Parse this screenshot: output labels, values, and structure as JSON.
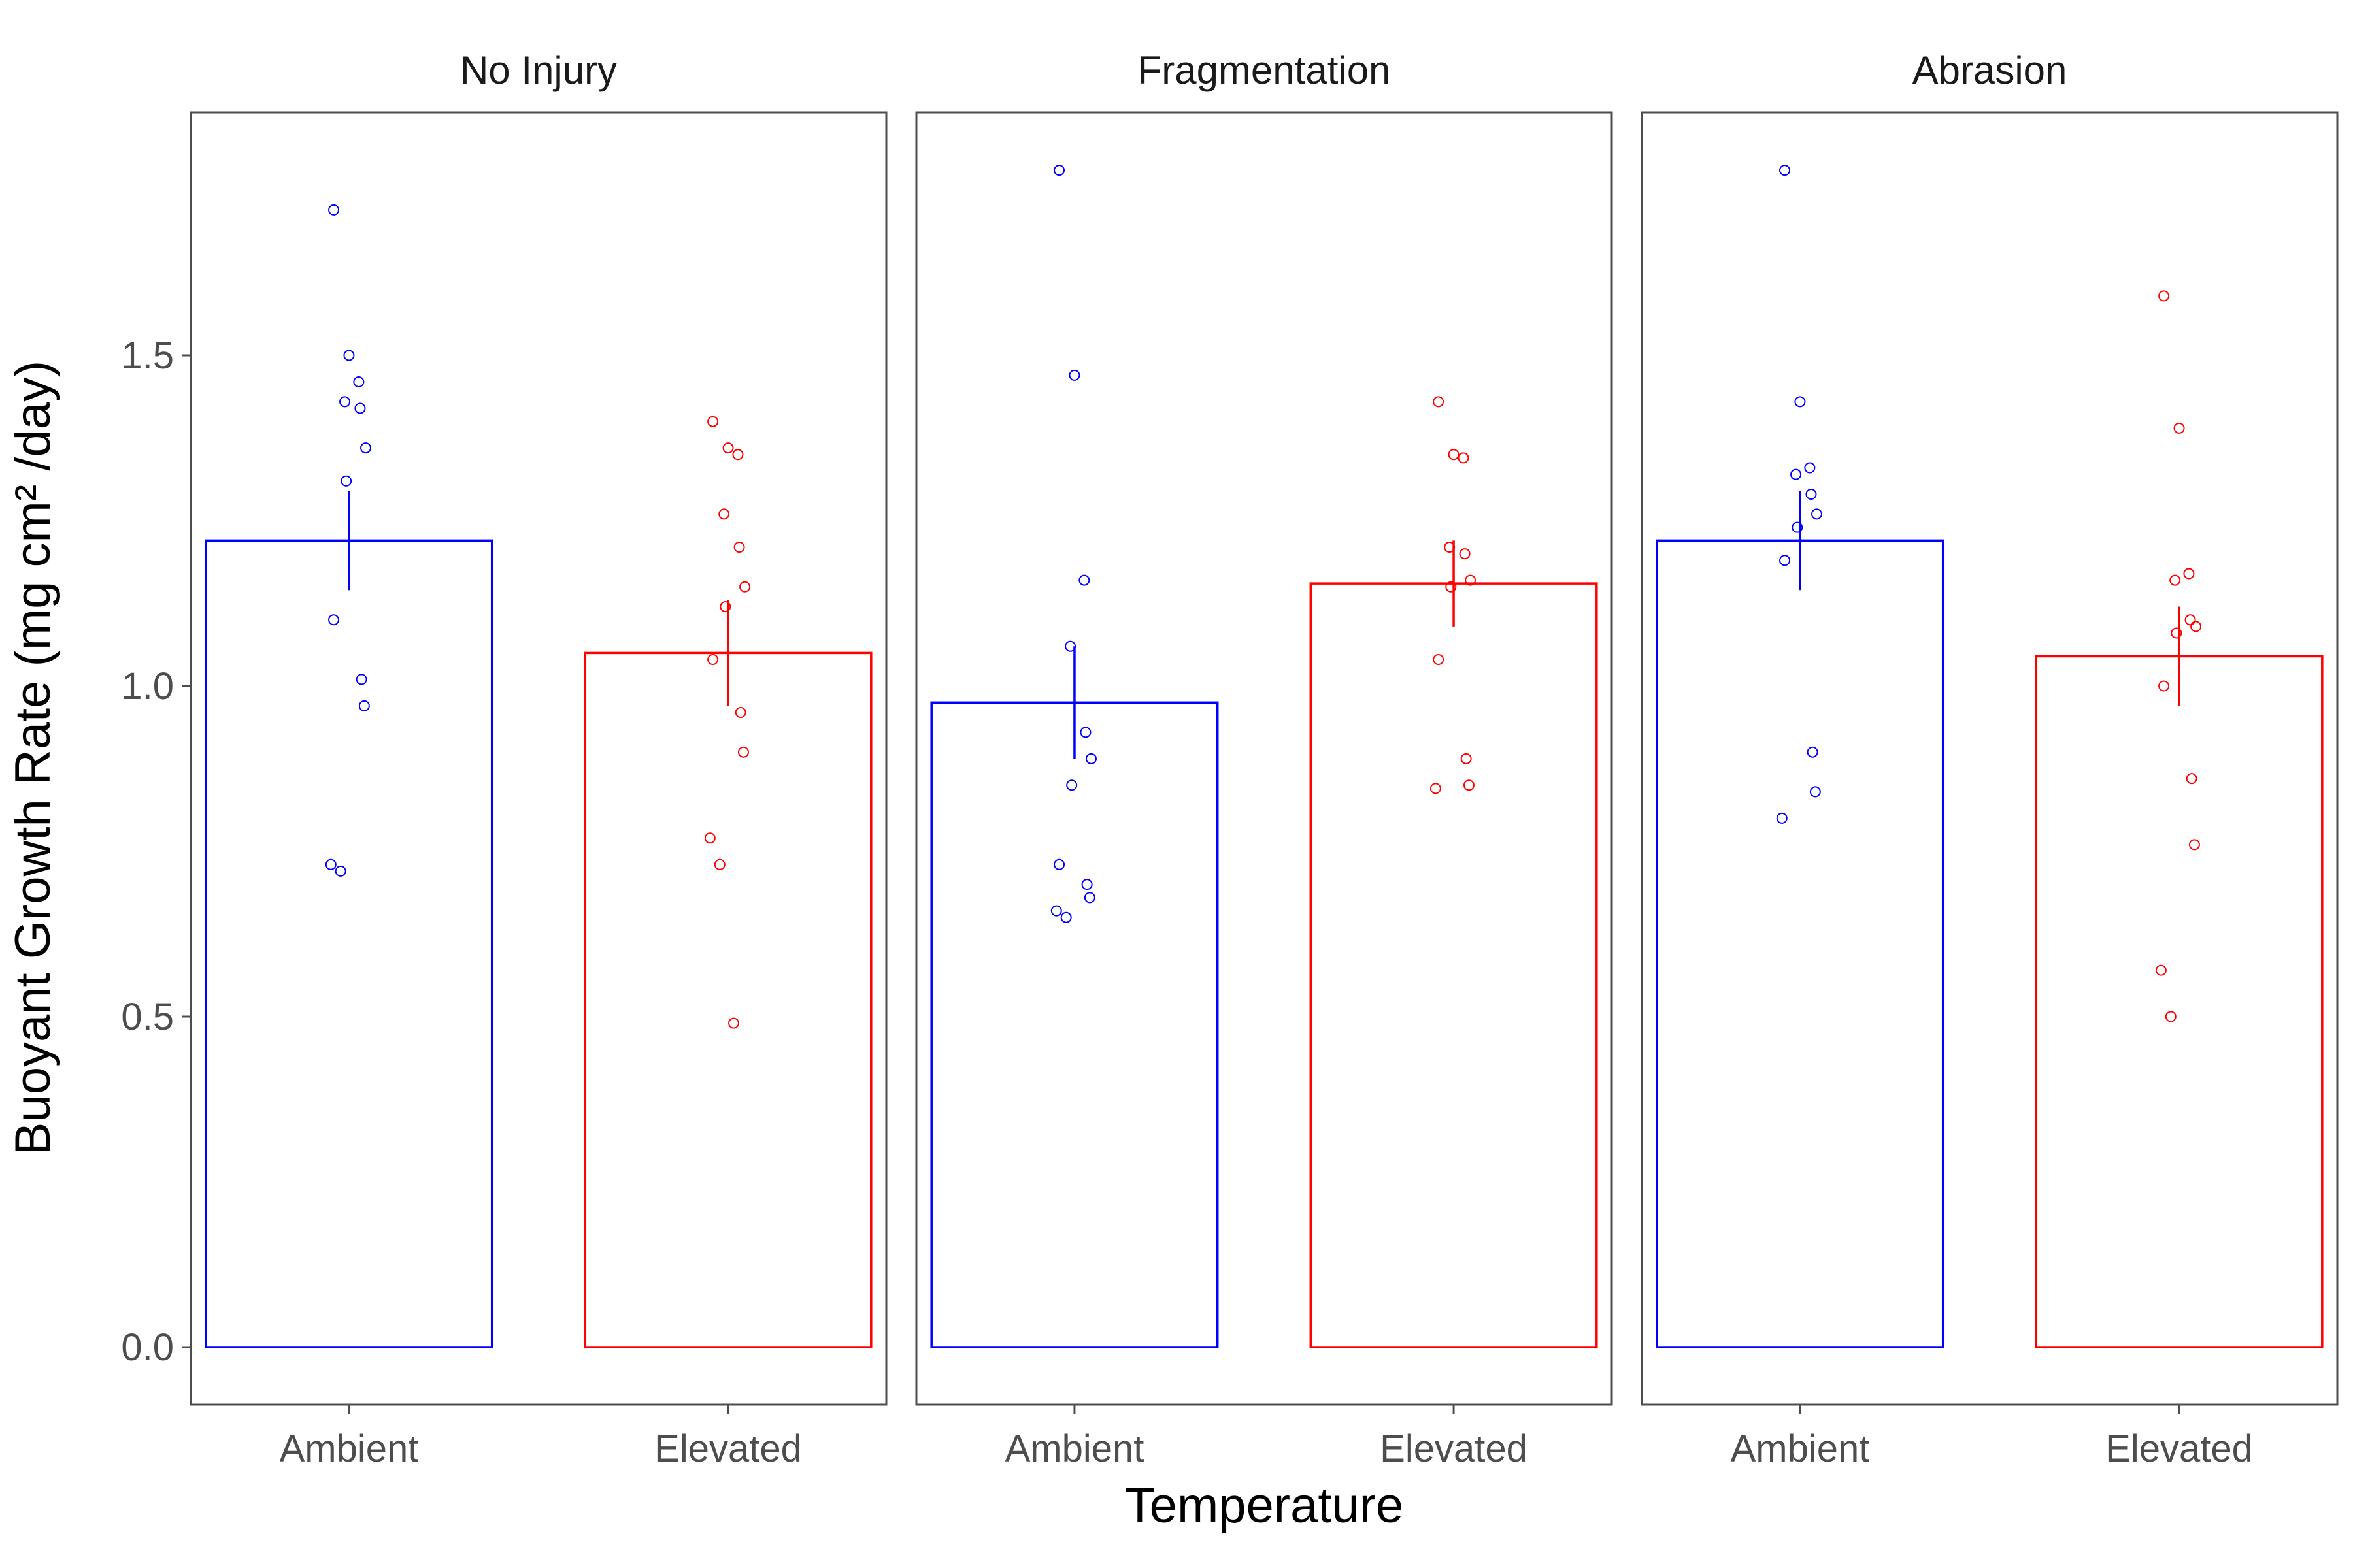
{
  "chart_data": {
    "type": "bar",
    "xlabel": "Temperature",
    "ylabel": "Buoyant Growth Rate (mg cm² /day)",
    "ylim": [
      -0.08,
      1.86
    ],
    "yticks": [
      0.0,
      0.5,
      1.0,
      1.5
    ],
    "ytick_labels": [
      "0.0",
      "0.5",
      "1.0",
      "1.5"
    ],
    "categories": [
      "Ambient",
      "Elevated"
    ],
    "colors": {
      "Ambient": "#0000ff",
      "Elevated": "#ff0000"
    },
    "grid": false,
    "legend": "none",
    "panels": [
      {
        "title": "No Injury",
        "bars": [
          {
            "category": "Ambient",
            "mean": 1.22,
            "se_low": 1.145,
            "se_high": 1.295,
            "points": [
              1.72,
              1.5,
              1.46,
              1.43,
              1.42,
              1.36,
              1.31,
              1.1,
              1.01,
              0.97,
              0.73,
              0.72
            ]
          },
          {
            "category": "Elevated",
            "mean": 1.05,
            "se_low": 0.97,
            "se_high": 1.13,
            "points": [
              1.4,
              1.36,
              1.35,
              1.26,
              1.21,
              1.15,
              1.12,
              1.04,
              0.96,
              0.9,
              0.77,
              0.73,
              0.49
            ]
          }
        ]
      },
      {
        "title": "Fragmentation",
        "bars": [
          {
            "category": "Ambient",
            "mean": 0.975,
            "se_low": 0.89,
            "se_high": 1.06,
            "points": [
              1.78,
              1.47,
              1.16,
              1.06,
              0.93,
              0.89,
              0.85,
              0.73,
              0.7,
              0.68,
              0.66,
              0.65
            ]
          },
          {
            "category": "Elevated",
            "mean": 1.155,
            "se_low": 1.09,
            "se_high": 1.22,
            "points": [
              1.43,
              1.35,
              1.345,
              1.21,
              1.2,
              1.16,
              1.15,
              1.04,
              0.89,
              0.85,
              0.845
            ]
          }
        ]
      },
      {
        "title": "Abrasion",
        "bars": [
          {
            "category": "Ambient",
            "mean": 1.22,
            "se_low": 1.145,
            "se_high": 1.295,
            "points": [
              1.78,
              1.43,
              1.33,
              1.32,
              1.29,
              1.26,
              1.24,
              1.19,
              0.9,
              0.84,
              0.8
            ]
          },
          {
            "category": "Elevated",
            "mean": 1.045,
            "se_low": 0.97,
            "se_high": 1.12,
            "points": [
              1.59,
              1.39,
              1.17,
              1.16,
              1.1,
              1.09,
              1.08,
              1.0,
              0.86,
              0.76,
              0.57,
              0.5
            ]
          }
        ]
      }
    ]
  }
}
